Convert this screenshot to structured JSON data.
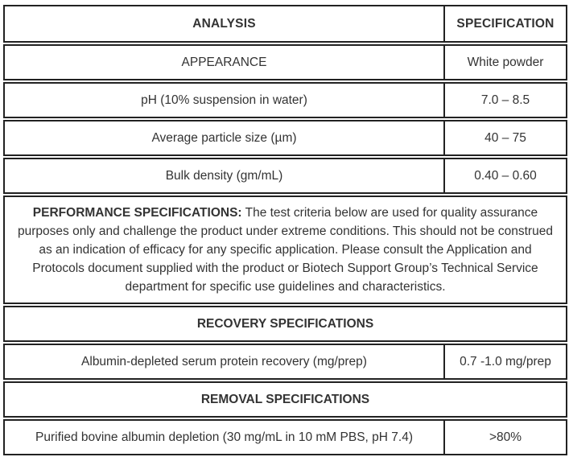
{
  "header": {
    "analysis": "ANALYSIS",
    "specification": "SPECIFICATION"
  },
  "rows": [
    {
      "analysis": "APPEARANCE",
      "specification": "White powder"
    },
    {
      "analysis": "pH (10% suspension in water)",
      "specification": "7.0 – 8.5"
    },
    {
      "analysis": "Average particle size (µm)",
      "specification": "40 – 75"
    },
    {
      "analysis": "Bulk density (gm/mL)",
      "specification": "0.40 – 0.60"
    }
  ],
  "performance": {
    "label": "PERFORMANCE SPECIFICATIONS:",
    "text": " The test criteria below are used for quality assurance purposes only and challenge the product under extreme conditions. This should not be construed as an indication of efficacy for any specific application. Please consult the Application and Protocols document supplied with the product or Biotech Support Group’s Technical Service department for specific use guidelines and characteristics."
  },
  "recovery": {
    "title": "RECOVERY SPECIFICATIONS",
    "analysis": "Albumin-depleted serum protein recovery (mg/prep)",
    "specification": "0.7 -1.0 mg/prep"
  },
  "removal": {
    "title": "REMOVAL SPECIFICATIONS",
    "analysis": "Purified bovine albumin depletion (30 mg/mL in 10 mM PBS, pH 7.4)",
    "specification": ">80%"
  }
}
